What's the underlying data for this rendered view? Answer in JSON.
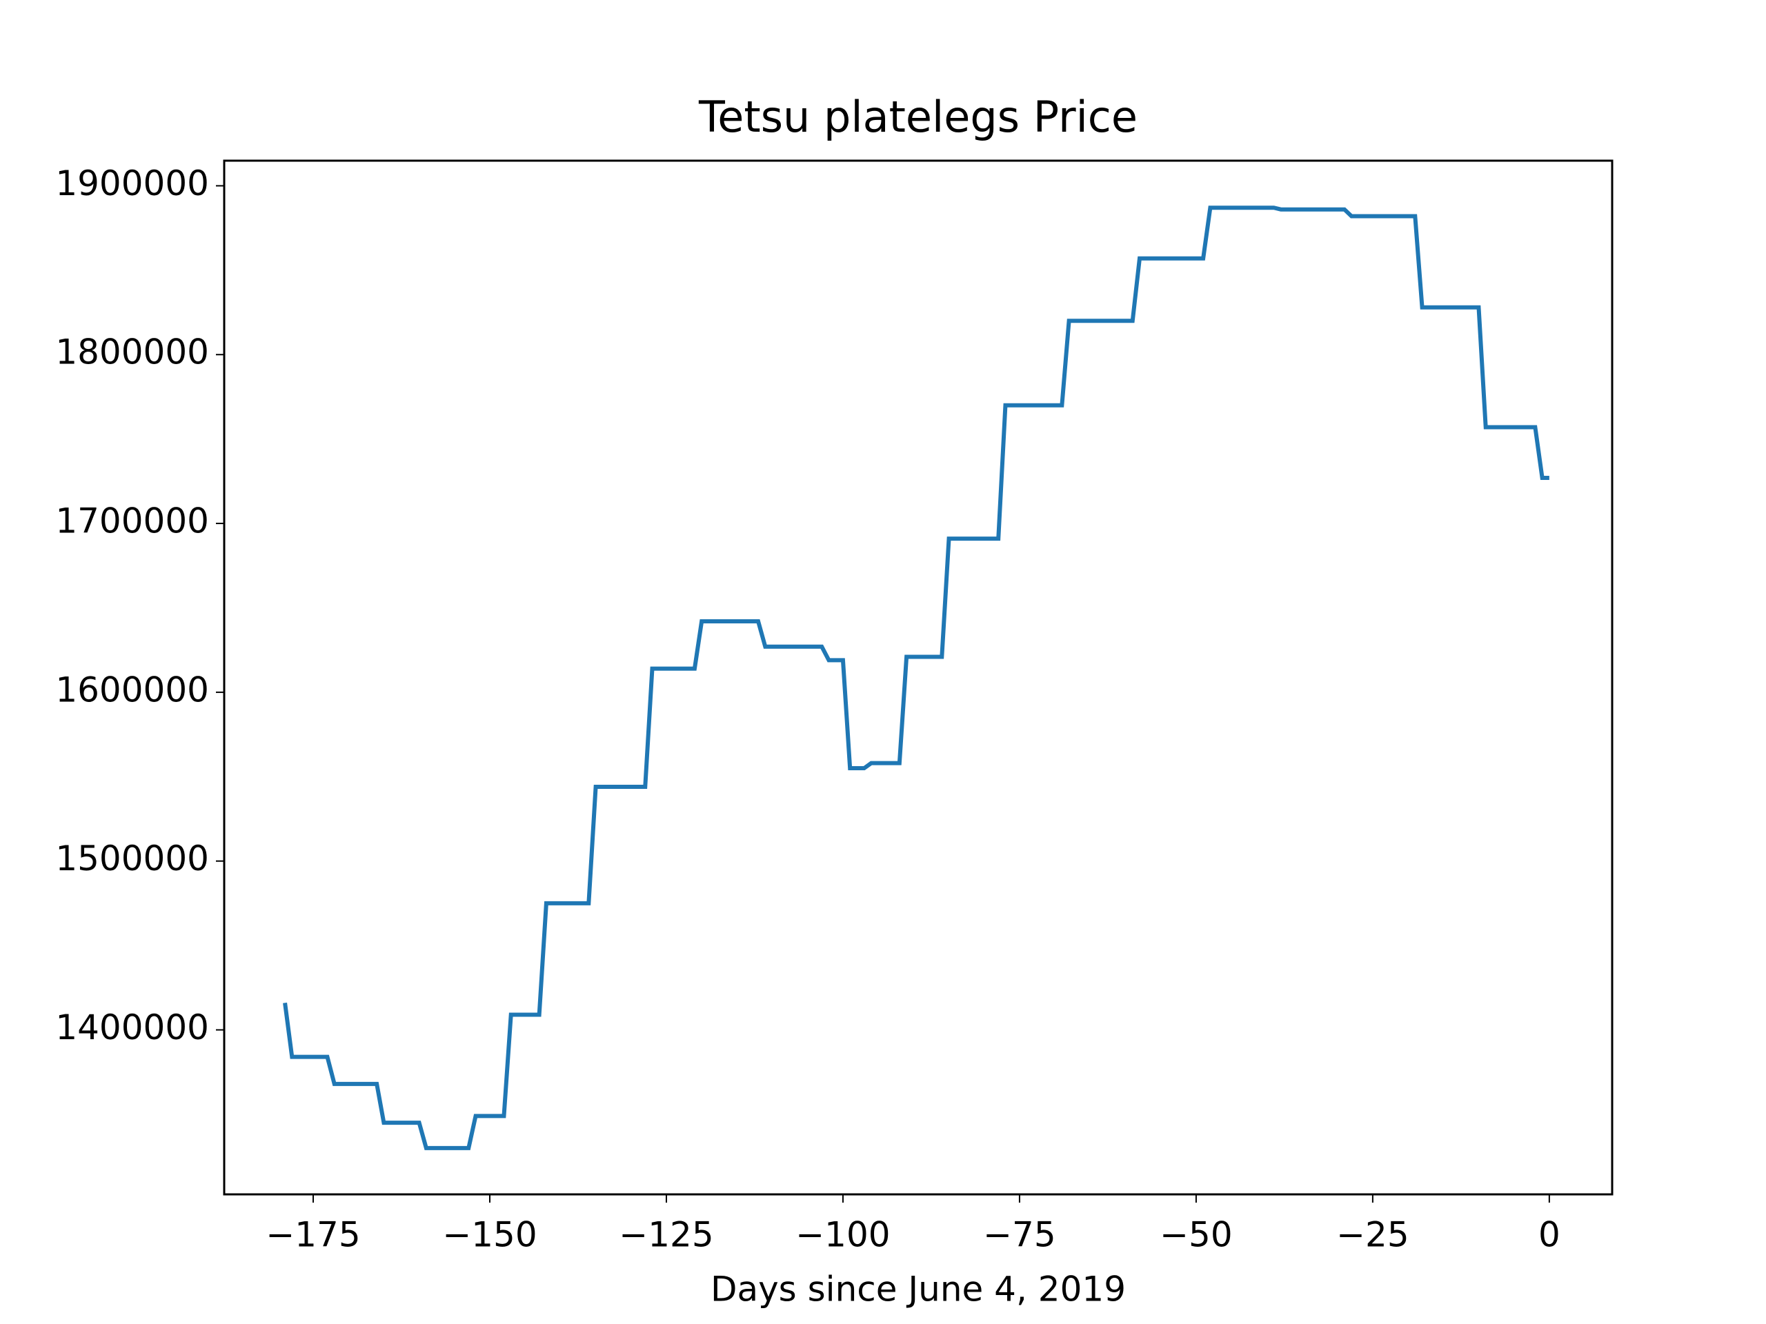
{
  "chart_data": {
    "type": "line",
    "title": "Tetsu platelegs Price",
    "x_label": "Days since June 4, 2019",
    "xlim": [
      -187.6,
      8.9
    ],
    "ylim": [
      1302571,
      1914885
    ],
    "xticks": [
      {
        "value": -175,
        "label": "−175"
      },
      {
        "value": -150,
        "label": "−150"
      },
      {
        "value": -125,
        "label": "−125"
      },
      {
        "value": -100,
        "label": "−100"
      },
      {
        "value": -75,
        "label": "−75"
      },
      {
        "value": -50,
        "label": "−50"
      },
      {
        "value": -25,
        "label": "−25"
      },
      0
    ],
    "yticks": [
      1400000,
      1500000,
      1600000,
      1700000,
      1800000,
      1900000
    ],
    "series": [
      {
        "color": "#1f77b4",
        "x": [
          -179,
          -178,
          -173,
          -172,
          -166,
          -165,
          -160,
          -159,
          -153,
          -152,
          -148,
          -147,
          -143,
          -142,
          -136,
          -135,
          -128,
          -127,
          -121,
          -120,
          -112,
          -111,
          -103,
          -102,
          -100,
          -99,
          -97,
          -96,
          -92,
          -91,
          -86,
          -85,
          -78,
          -77,
          -69,
          -68,
          -59,
          -58,
          -49,
          -48,
          -39,
          -38,
          -29,
          -28,
          -19,
          -18,
          -10,
          -9,
          -2,
          -1,
          0
        ],
        "values": [
          1416000,
          1384000,
          1384000,
          1368000,
          1368000,
          1345000,
          1345000,
          1330000,
          1330000,
          1349000,
          1349000,
          1409000,
          1409000,
          1475000,
          1475000,
          1544000,
          1544000,
          1614000,
          1614000,
          1642000,
          1642000,
          1627000,
          1627000,
          1619000,
          1619000,
          1555000,
          1555000,
          1558000,
          1558000,
          1621000,
          1621000,
          1691000,
          1691000,
          1770000,
          1770000,
          1820000,
          1820000,
          1857000,
          1857000,
          1887000,
          1887000,
          1886000,
          1886000,
          1882000,
          1882000,
          1828000,
          1828000,
          1757000,
          1757000,
          1727000,
          1727000
        ]
      }
    ]
  }
}
